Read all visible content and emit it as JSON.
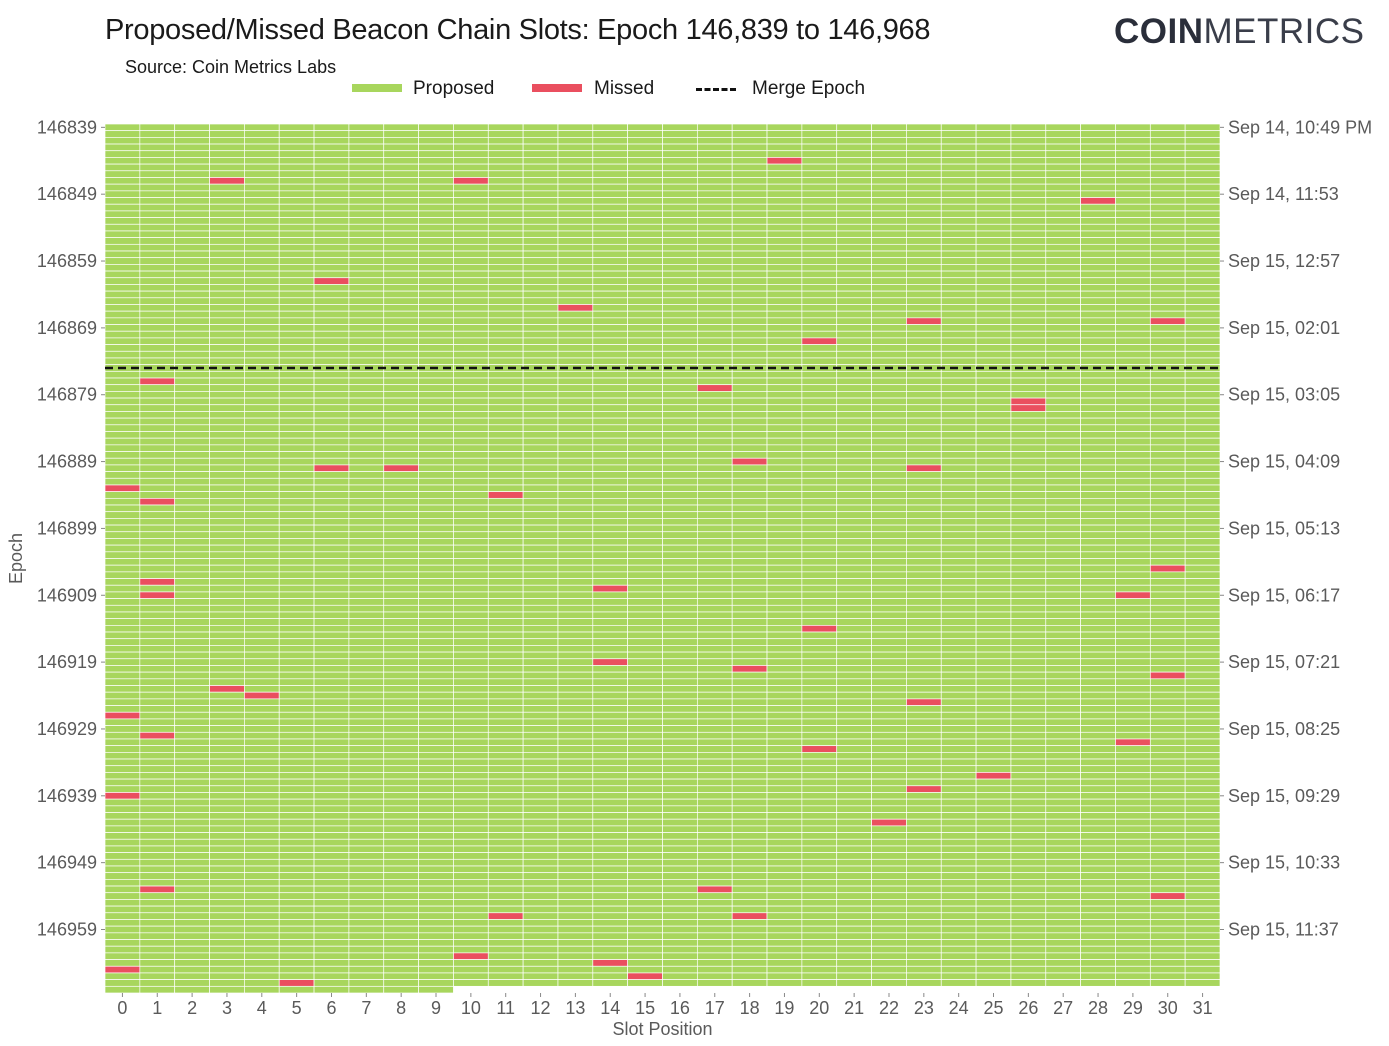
{
  "title": "Proposed/Missed Beacon Chain Slots: Epoch 146,839 to 146,968",
  "subtitle": "Source: Coin Metrics Labs",
  "logo": {
    "bold": "COIN",
    "light": "METRICS"
  },
  "legend": {
    "proposed_label": "Proposed",
    "missed_label": "Missed",
    "merge_label": "Merge Epoch"
  },
  "colors": {
    "proposed": "#a8d65d",
    "missed": "#ea4f5f",
    "merge_line": "#111111",
    "grid": "#ffffff"
  },
  "chart_data": {
    "type": "heatmap",
    "title": "Proposed/Missed Beacon Chain Slots: Epoch 146,839 to 146,968",
    "xlabel": "Slot Position",
    "ylabel": "Epoch",
    "x_categories": [
      0,
      1,
      2,
      3,
      4,
      5,
      6,
      7,
      8,
      9,
      10,
      11,
      12,
      13,
      14,
      15,
      16,
      17,
      18,
      19,
      20,
      21,
      22,
      23,
      24,
      25,
      26,
      27,
      28,
      29,
      30,
      31
    ],
    "epoch_range": [
      146839,
      146968
    ],
    "y_ticks_left": [
      "146839",
      "146849",
      "146859",
      "146869",
      "146879",
      "146889",
      "146899",
      "146909",
      "146919",
      "146929",
      "146939",
      "146949",
      "146959"
    ],
    "y_ticks_right": [
      "Sep 14, 10:49 PM",
      "Sep 14, 11:53",
      "Sep 15, 12:57",
      "Sep 15, 02:01",
      "Sep 15, 03:05",
      "Sep 15, 04:09",
      "Sep 15, 05:13",
      "Sep 15, 06:17",
      "Sep 15, 07:21",
      "Sep 15, 08:25",
      "Sep 15, 09:29",
      "Sep 15, 10:33",
      "Sep 15, 11:37"
    ],
    "merge_epoch": 146875,
    "last_epoch_max_slot": 9,
    "categories_legend": [
      "Proposed",
      "Missed"
    ],
    "missed": [
      {
        "epoch": 146844,
        "slot": 19
      },
      {
        "epoch": 146847,
        "slot": 3
      },
      {
        "epoch": 146847,
        "slot": 10
      },
      {
        "epoch": 146850,
        "slot": 28
      },
      {
        "epoch": 146862,
        "slot": 6
      },
      {
        "epoch": 146866,
        "slot": 13
      },
      {
        "epoch": 146868,
        "slot": 23
      },
      {
        "epoch": 146868,
        "slot": 30
      },
      {
        "epoch": 146871,
        "slot": 20
      },
      {
        "epoch": 146877,
        "slot": 1
      },
      {
        "epoch": 146878,
        "slot": 17
      },
      {
        "epoch": 146880,
        "slot": 26
      },
      {
        "epoch": 146881,
        "slot": 26
      },
      {
        "epoch": 146889,
        "slot": 18
      },
      {
        "epoch": 146890,
        "slot": 6
      },
      {
        "epoch": 146890,
        "slot": 8
      },
      {
        "epoch": 146890,
        "slot": 23
      },
      {
        "epoch": 146893,
        "slot": 0
      },
      {
        "epoch": 146894,
        "slot": 11
      },
      {
        "epoch": 146895,
        "slot": 1
      },
      {
        "epoch": 146905,
        "slot": 30
      },
      {
        "epoch": 146907,
        "slot": 1
      },
      {
        "epoch": 146908,
        "slot": 14
      },
      {
        "epoch": 146909,
        "slot": 1
      },
      {
        "epoch": 146909,
        "slot": 29
      },
      {
        "epoch": 146914,
        "slot": 20
      },
      {
        "epoch": 146919,
        "slot": 14
      },
      {
        "epoch": 146920,
        "slot": 18
      },
      {
        "epoch": 146921,
        "slot": 30
      },
      {
        "epoch": 146923,
        "slot": 3
      },
      {
        "epoch": 146924,
        "slot": 4
      },
      {
        "epoch": 146925,
        "slot": 23
      },
      {
        "epoch": 146927,
        "slot": 0
      },
      {
        "epoch": 146930,
        "slot": 1
      },
      {
        "epoch": 146931,
        "slot": 29
      },
      {
        "epoch": 146932,
        "slot": 20
      },
      {
        "epoch": 146936,
        "slot": 25
      },
      {
        "epoch": 146938,
        "slot": 23
      },
      {
        "epoch": 146939,
        "slot": 0
      },
      {
        "epoch": 146943,
        "slot": 22
      },
      {
        "epoch": 146953,
        "slot": 1
      },
      {
        "epoch": 146953,
        "slot": 17
      },
      {
        "epoch": 146954,
        "slot": 30
      },
      {
        "epoch": 146957,
        "slot": 11
      },
      {
        "epoch": 146957,
        "slot": 18
      },
      {
        "epoch": 146963,
        "slot": 10
      },
      {
        "epoch": 146964,
        "slot": 14
      },
      {
        "epoch": 146965,
        "slot": 0
      },
      {
        "epoch": 146966,
        "slot": 15
      },
      {
        "epoch": 146967,
        "slot": 5
      }
    ]
  }
}
